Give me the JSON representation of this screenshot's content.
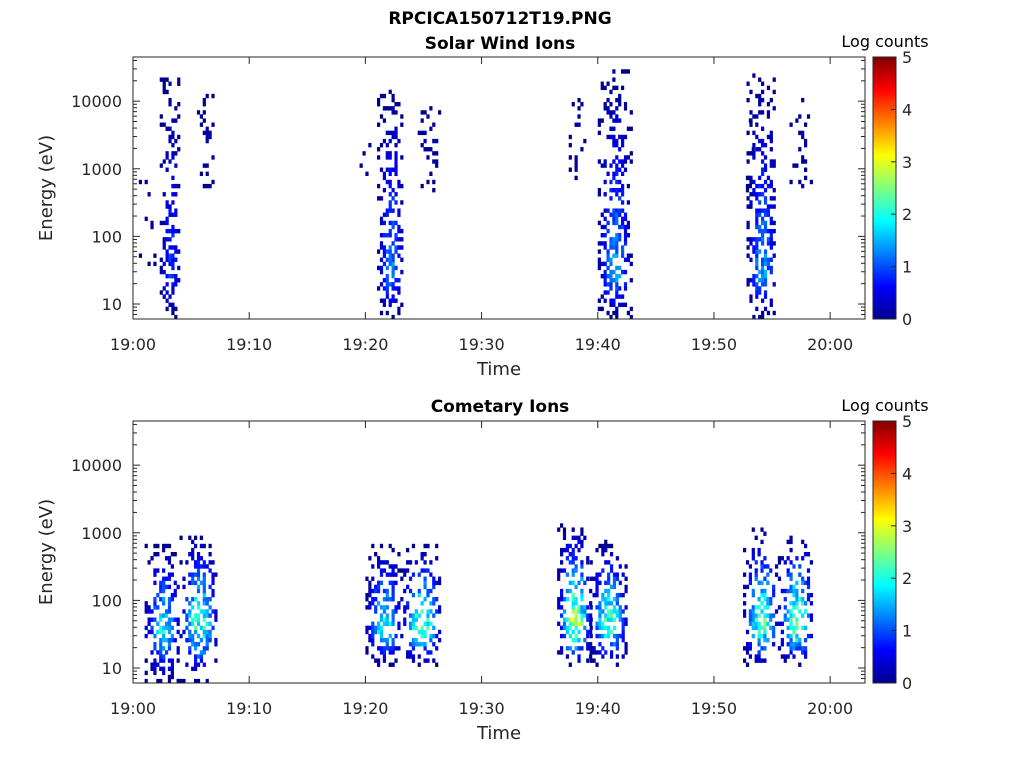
{
  "figure_title": "RPCICA150712T19.PNG",
  "chart_data": [
    {
      "type": "heatmap",
      "title": "Solar Wind Ions",
      "xlabel": "Time",
      "ylabel": "Energy (eV)",
      "x_ticks": [
        "19:00",
        "19:10",
        "19:20",
        "19:30",
        "19:40",
        "19:50",
        "20:00"
      ],
      "x_range": [
        "19:00",
        "20:03"
      ],
      "y_ticks": [
        "10",
        "100",
        "1000",
        "10000"
      ],
      "y_scale": "log",
      "y_range": [
        6,
        45000
      ],
      "colorbar": {
        "label": "Log counts",
        "ticks": [
          "0",
          "1",
          "2",
          "3",
          "4",
          "5"
        ],
        "range": [
          0,
          5
        ],
        "colormap": "jet"
      },
      "bursts": [
        {
          "t0": 2.3,
          "t1": 4.0,
          "emin": 6,
          "emax": 22000,
          "peak_e": 25,
          "max_level": 1.1,
          "density": 0.6
        },
        {
          "t0": 5.5,
          "t1": 7.0,
          "emin": 300,
          "emax": 16000,
          "peak_e": 2000,
          "max_level": 0.3,
          "density": 0.25
        },
        {
          "t0": 0.5,
          "t1": 2.0,
          "emin": 30,
          "emax": 2500,
          "peak_e": 200,
          "max_level": 0.25,
          "density": 0.12
        },
        {
          "t0": 21.0,
          "t1": 23.2,
          "emin": 6,
          "emax": 13000,
          "peak_e": 25,
          "max_level": 1.6,
          "density": 0.6
        },
        {
          "t0": 19.5,
          "t1": 20.5,
          "emin": 200,
          "emax": 3000,
          "peak_e": 1000,
          "max_level": 0.2,
          "density": 0.1
        },
        {
          "t0": 24.5,
          "t1": 26.5,
          "emin": 350,
          "emax": 11000,
          "peak_e": 3000,
          "max_level": 0.3,
          "density": 0.25
        },
        {
          "t0": 37.5,
          "t1": 39.0,
          "emin": 200,
          "emax": 17000,
          "peak_e": 3000,
          "max_level": 0.3,
          "density": 0.2
        },
        {
          "t0": 40.0,
          "t1": 42.8,
          "emin": 6,
          "emax": 26000,
          "peak_e": 25,
          "max_level": 1.7,
          "density": 0.6
        },
        {
          "t0": 52.5,
          "t1": 53.5,
          "emin": 200,
          "emax": 8000,
          "peak_e": 1500,
          "max_level": 0.2,
          "density": 0.12
        },
        {
          "t0": 52.8,
          "t1": 55.3,
          "emin": 6,
          "emax": 23000,
          "peak_e": 25,
          "max_level": 1.7,
          "density": 0.6
        },
        {
          "t0": 56.5,
          "t1": 58.5,
          "emin": 400,
          "emax": 10000,
          "peak_e": 2500,
          "max_level": 0.3,
          "density": 0.25
        }
      ]
    },
    {
      "type": "heatmap",
      "title": "Cometary Ions",
      "xlabel": "Time",
      "ylabel": "Energy (eV)",
      "x_ticks": [
        "19:00",
        "19:10",
        "19:20",
        "19:30",
        "19:40",
        "19:50",
        "20:00"
      ],
      "x_range": [
        "19:00",
        "20:03"
      ],
      "y_ticks": [
        "10",
        "100",
        "1000",
        "10000"
      ],
      "y_scale": "log",
      "y_range": [
        6,
        45000
      ],
      "colorbar": {
        "label": "Log counts",
        "ticks": [
          "0",
          "1",
          "2",
          "3",
          "4",
          "5"
        ],
        "range": [
          0,
          5
        ],
        "colormap": "jet"
      },
      "bursts": [
        {
          "t0": 1.0,
          "t1": 4.0,
          "emin": 6,
          "emax": 600,
          "peak_e": 35,
          "max_level": 2.3,
          "density": 0.6
        },
        {
          "t0": 4.0,
          "t1": 7.2,
          "emin": 6,
          "emax": 900,
          "peak_e": 40,
          "max_level": 2.7,
          "density": 0.6
        },
        {
          "t0": 20.0,
          "t1": 23.0,
          "emin": 10,
          "emax": 600,
          "peak_e": 35,
          "max_level": 2.5,
          "density": 0.6
        },
        {
          "t0": 23.0,
          "t1": 26.5,
          "emin": 10,
          "emax": 650,
          "peak_e": 40,
          "max_level": 2.9,
          "density": 0.6
        },
        {
          "t0": 36.5,
          "t1": 39.3,
          "emin": 10,
          "emax": 1200,
          "peak_e": 40,
          "max_level": 3.5,
          "density": 0.65
        },
        {
          "t0": 39.3,
          "t1": 42.5,
          "emin": 10,
          "emax": 700,
          "peak_e": 40,
          "max_level": 2.8,
          "density": 0.65
        },
        {
          "t0": 52.5,
          "t1": 55.5,
          "emin": 10,
          "emax": 1100,
          "peak_e": 40,
          "max_level": 2.9,
          "density": 0.6
        },
        {
          "t0": 55.5,
          "t1": 58.5,
          "emin": 10,
          "emax": 900,
          "peak_e": 40,
          "max_level": 3.2,
          "density": 0.6
        }
      ]
    }
  ]
}
